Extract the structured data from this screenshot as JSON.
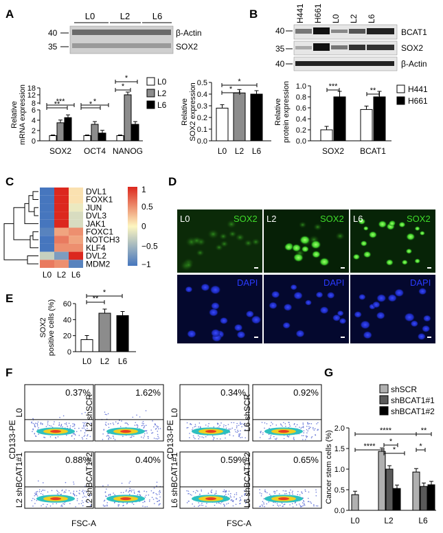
{
  "panels": {
    "A": "A",
    "B": "B",
    "C": "C",
    "D": "D",
    "E": "E",
    "F": "F",
    "G": "G"
  },
  "blotA": {
    "lanes": [
      "L0",
      "L2",
      "L6"
    ],
    "markers": [
      "40",
      "35"
    ],
    "bands": [
      "β-Actin",
      "SOX2"
    ]
  },
  "blotB": {
    "lanes": [
      "H441",
      "H661",
      "L0",
      "L2",
      "L6"
    ],
    "markers": [
      "40",
      "35",
      "40"
    ],
    "bands": [
      "BCAT1",
      "SOX2",
      "β-Actin"
    ]
  },
  "chart_data": [
    {
      "panel": "A-left",
      "type": "bar",
      "categories": [
        "SOX2",
        "OCT4",
        "NANOG"
      ],
      "series": [
        {
          "name": "L0",
          "values": [
            1,
            1,
            1
          ],
          "color": "#ffffff"
        },
        {
          "name": "L2",
          "values": [
            3.5,
            3.2,
            12
          ],
          "color": "#8c8c8c"
        },
        {
          "name": "L6",
          "values": [
            4.5,
            1.5,
            3.2
          ],
          "color": "#000000"
        }
      ],
      "ylabel": "Relative mRNA expression",
      "yticks": [
        "0",
        "2",
        "4",
        "6",
        "8",
        "12",
        "18"
      ],
      "sig": [
        "***",
        "**",
        "*",
        "*",
        "*",
        "*"
      ]
    },
    {
      "panel": "A-right",
      "type": "bar",
      "categories": [
        "L0",
        "L2",
        "L6"
      ],
      "values": [
        0.28,
        0.41,
        0.4
      ],
      "colors": [
        "#ffffff",
        "#8c8c8c",
        "#000000"
      ],
      "ylabel": "Relative SOX2 expression",
      "ylim": [
        0,
        0.5
      ],
      "yticks": [
        "0.0",
        "0.1",
        "0.2",
        "0.3",
        "0.4",
        "0.5"
      ],
      "sig": [
        "*",
        "*"
      ]
    },
    {
      "panel": "B",
      "type": "bar",
      "categories": [
        "SOX2",
        "BCAT1"
      ],
      "series": [
        {
          "name": "H441",
          "values": [
            0.2,
            0.57
          ],
          "color": "#ffffff"
        },
        {
          "name": "H661",
          "values": [
            0.8,
            0.8
          ],
          "color": "#000000"
        }
      ],
      "ylabel": "Relative protein expression",
      "ylim": [
        0,
        1.0
      ],
      "yticks": [
        "0.0",
        "0.2",
        "0.4",
        "0.6",
        "0.8",
        "1.0"
      ],
      "sig": [
        "***",
        "**"
      ]
    },
    {
      "panel": "C",
      "type": "heatmap",
      "columns": [
        "L0",
        "L2",
        "L6"
      ],
      "rows": [
        "DVL1",
        "FOXK1",
        "JUN",
        "DVL3",
        "JAK1",
        "FOXC1",
        "NOTCH3",
        "KLF4",
        "DVL2",
        "MDM2"
      ],
      "values": [
        [
          -1,
          1,
          0.1
        ],
        [
          -1,
          1,
          0.1
        ],
        [
          -1,
          1,
          -0.1
        ],
        [
          -1,
          1,
          -0.2
        ],
        [
          -1,
          1,
          -0.2
        ],
        [
          -0.9,
          0.4,
          0.5
        ],
        [
          -1,
          0.6,
          0.4
        ],
        [
          -1,
          0.5,
          0.5
        ],
        [
          -0.3,
          -0.7,
          1
        ],
        [
          0.6,
          0.5,
          -0.9
        ]
      ],
      "scale_ticks": [
        "1",
        "0.5",
        "0",
        "−0.5",
        "−1"
      ]
    },
    {
      "panel": "E",
      "type": "bar",
      "categories": [
        "L0",
        "L2",
        "L6"
      ],
      "values": [
        15,
        48,
        45
      ],
      "colors": [
        "#ffffff",
        "#8c8c8c",
        "#000000"
      ],
      "ylabel": "SOX2 positive cells (%)",
      "ylim": [
        0,
        60
      ],
      "yticks": [
        "0",
        "20",
        "40",
        "60"
      ],
      "sig": [
        "**",
        "*"
      ]
    },
    {
      "panel": "G",
      "type": "bar",
      "categories": [
        "L0",
        "L2",
        "L6"
      ],
      "series": [
        {
          "name": "shSCR",
          "values": [
            0.38,
            1.43,
            0.93
          ],
          "color": "#b0b0b0"
        },
        {
          "name": "shBCAT1#1",
          "values": [
            null,
            1.0,
            0.58
          ],
          "color": "#5a5a5a"
        },
        {
          "name": "shBCAT1#2",
          "values": [
            null,
            0.53,
            0.62
          ],
          "color": "#000000"
        }
      ],
      "ylabel": "Cancer stem cells (%)",
      "ylim": [
        0,
        2.0
      ],
      "yticks": [
        "0.0",
        "0.5",
        "1.0",
        "1.5",
        "2.0"
      ],
      "sig": [
        "****",
        "****",
        "**",
        "*",
        "*",
        "*"
      ]
    }
  ],
  "microscopy": {
    "top_labels": [
      "L0",
      "L2",
      "L6"
    ],
    "stain_top": "SOX2",
    "stain_bottom": "DAPI"
  },
  "flow": {
    "ylabel": "CD133-PE",
    "xlabel": "FSC-A",
    "left": [
      {
        "label": "L0",
        "pct": "0.37%"
      },
      {
        "label": "L2 shSCR",
        "pct": "1.62%"
      },
      {
        "label": "L2 shBCAT1#1",
        "pct": "0.88%"
      },
      {
        "label": "L2 shBCAT1#2",
        "pct": "0.40%"
      }
    ],
    "right": [
      {
        "label": "L0",
        "pct": "0.34%"
      },
      {
        "label": "L6 shSCR",
        "pct": "0.92%"
      },
      {
        "label": "L6 shBCAT1#1",
        "pct": "0.59%"
      },
      {
        "label": "L6 shBCAT1#2",
        "pct": "0.65%"
      }
    ]
  }
}
